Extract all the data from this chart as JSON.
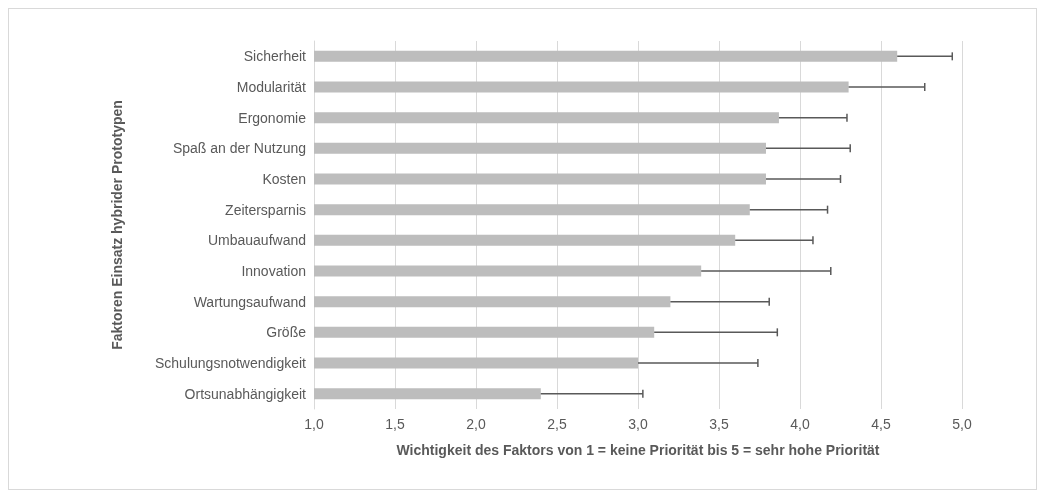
{
  "chart_data": {
    "type": "bar",
    "orientation": "horizontal",
    "xlabel": "Wichtigkeit des Faktors von 1 = keine Priorität bis 5 = sehr hohe Priorität",
    "ylabel": "Faktoren Einsatz hybrider Prototypen",
    "categories": [
      "Sicherheit",
      "Modularität",
      "Ergonomie",
      "Spaß an der Nutzung",
      "Kosten",
      "Zeitersparnis",
      "Umbauaufwand",
      "Innovation",
      "Wartungsaufwand",
      "Größe",
      "Schulungsnotwendigkeit",
      "Ortsunabhängigkeit"
    ],
    "values": [
      4.6,
      4.3,
      3.87,
      3.79,
      3.79,
      3.69,
      3.6,
      3.39,
      3.2,
      3.1,
      3.0,
      2.4
    ],
    "errors": [
      [
        4.6,
        4.94
      ],
      [
        4.3,
        4.77
      ],
      [
        3.87,
        4.29
      ],
      [
        3.79,
        4.31
      ],
      [
        3.79,
        4.25
      ],
      [
        3.69,
        4.17
      ],
      [
        3.6,
        4.08
      ],
      [
        3.39,
        4.19
      ],
      [
        3.2,
        3.81
      ],
      [
        3.1,
        3.86
      ],
      [
        3.0,
        3.74
      ],
      [
        2.4,
        3.03
      ]
    ],
    "color": "#bdbdbd",
    "xlim": [
      1.0,
      5.0
    ],
    "xticks": [
      {
        "value": 1.0,
        "label": "1,0"
      },
      {
        "value": 1.5,
        "label": "1,5"
      },
      {
        "value": 2.0,
        "label": "2,0"
      },
      {
        "value": 2.5,
        "label": "2,5"
      },
      {
        "value": 3.0,
        "label": "3,0"
      },
      {
        "value": 3.5,
        "label": "3,5"
      },
      {
        "value": 4.0,
        "label": "4,0"
      },
      {
        "value": 4.5,
        "label": "4,5"
      },
      {
        "value": 5.0,
        "label": "5,0"
      }
    ],
    "grid": "x"
  }
}
